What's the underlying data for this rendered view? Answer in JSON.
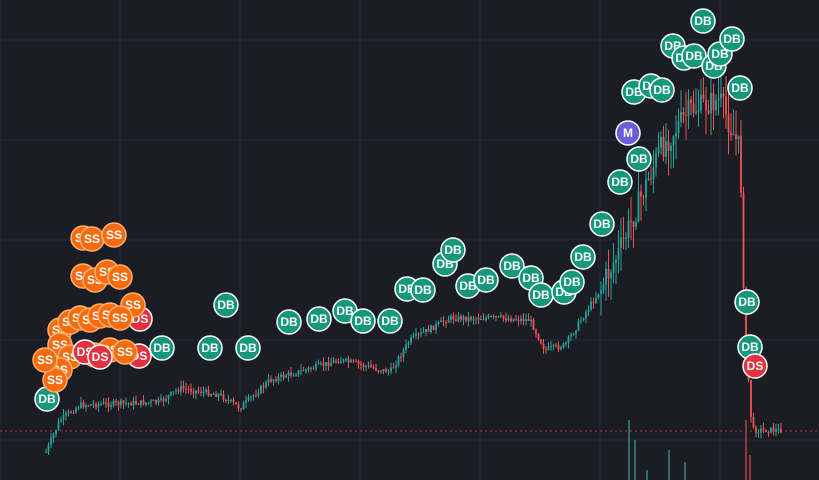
{
  "markers": [
    "DB",
    "DB",
    "DB",
    "DB",
    "DB",
    "DB",
    "DB",
    "DB",
    "DB",
    "DB",
    "DB",
    "DB",
    "DB",
    "DB",
    "DB",
    "DB",
    "DB",
    "DB",
    "DB",
    "DB",
    "DB",
    "DB",
    "DB",
    "DB",
    "DB",
    "DB",
    "DB",
    "DB",
    "DB",
    "DB",
    "DB",
    "DB",
    "DB",
    "DB",
    "DB",
    "DB",
    "DB",
    "DB",
    "DS",
    "DS",
    "DS",
    "SS",
    "SS",
    "SS",
    "SS",
    "SS",
    "SS",
    "SS",
    "SS",
    "SS",
    "SS",
    "SS",
    "SS",
    "SS",
    "SS",
    "SS",
    "SS",
    "SS",
    "SS",
    "SS",
    "SS",
    "SS",
    "SS",
    "SS",
    "DS",
    "DS",
    "M"
  ]
}
